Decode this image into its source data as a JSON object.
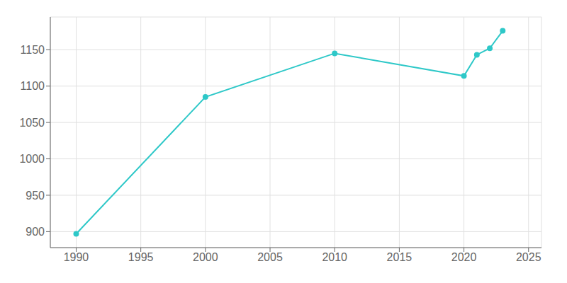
{
  "chart_data": {
    "type": "line",
    "x": [
      1990,
      2000,
      2010,
      2020,
      2021,
      2022,
      2023
    ],
    "values": [
      897,
      1085,
      1145,
      1114,
      1143,
      1152,
      1176
    ],
    "color": "#2ec8c8",
    "marker": "circle",
    "xlim": [
      1988,
      2026
    ],
    "ylim": [
      878,
      1195
    ],
    "xticks": [
      1990,
      1995,
      2000,
      2005,
      2010,
      2015,
      2020,
      2025
    ],
    "yticks": [
      900,
      950,
      1000,
      1050,
      1100,
      1150
    ],
    "grid": true
  }
}
